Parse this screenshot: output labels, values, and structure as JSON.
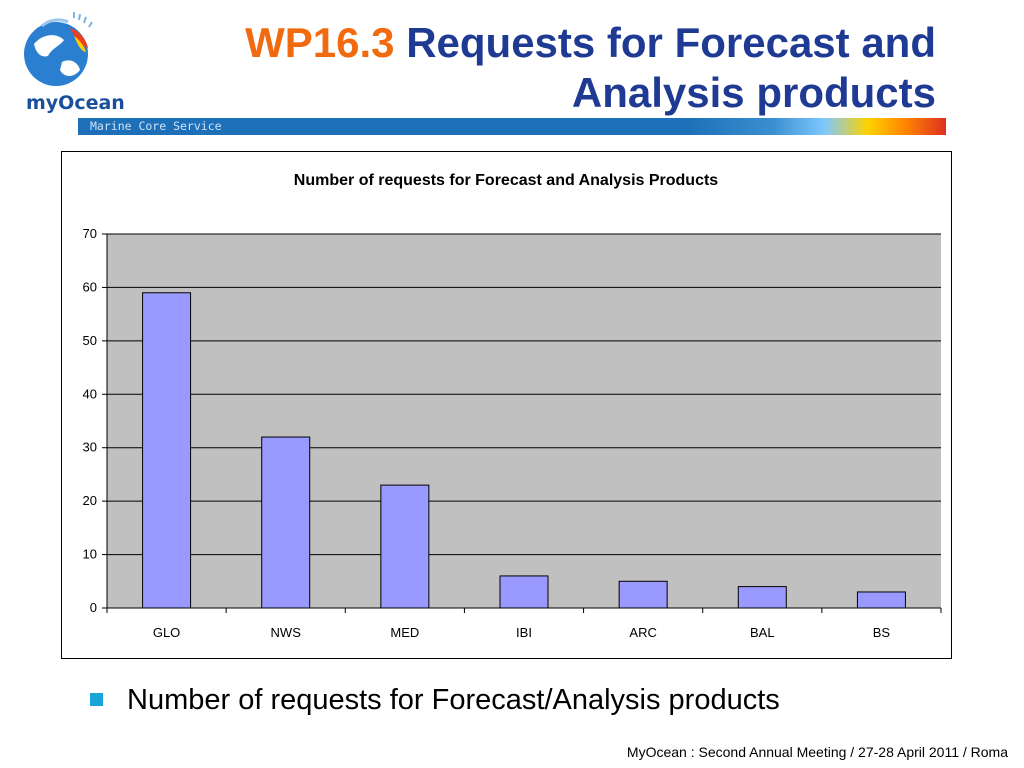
{
  "logo": {
    "text": "myOcean",
    "icon": "globe-icon"
  },
  "header": {
    "code": "WP16.3",
    "title_line1": "Requests for Forecast and",
    "title_line2": "Analysis products",
    "band_label": "Marine Core Service"
  },
  "chart_data": {
    "type": "bar",
    "title": "Number of requests for Forecast and Analysis Products",
    "categories": [
      "GLO",
      "NWS",
      "MED",
      "IBI",
      "ARC",
      "BAL",
      "BS"
    ],
    "values": [
      59,
      32,
      23,
      6,
      5,
      4,
      3
    ],
    "xlabel": "",
    "ylabel": "",
    "ylim": [
      0,
      70
    ],
    "yticks": [
      0,
      10,
      20,
      30,
      40,
      50,
      60,
      70
    ],
    "grid": true,
    "legend": false,
    "colors": {
      "bar": "#9999ff",
      "plot_bg": "#c0c0c0"
    }
  },
  "bullet": {
    "text": "Number of requests for Forecast/Analysis products",
    "color": "#1aa3d9"
  },
  "footer": {
    "text": "MyOcean : Second Annual Meeting / 27-28 April 2011 / Roma"
  }
}
